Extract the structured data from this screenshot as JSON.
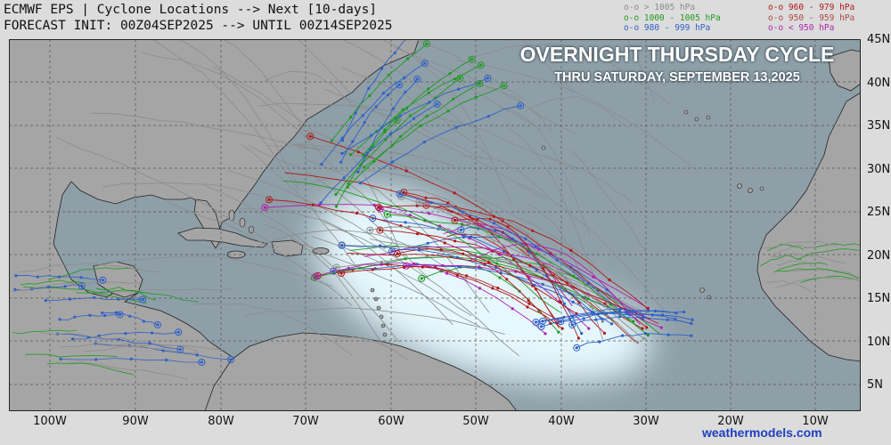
{
  "header": {
    "line1": "ECMWF EPS | Cyclone Locations --> Next [10-days]",
    "line2": "FORECAST INIT: 00Z04SEP2025 --> UNTIL 00Z14SEP2025"
  },
  "legend": {
    "left": [
      {
        "text": "o-o > 1005 hPa",
        "color": "#8c8c8c"
      },
      {
        "text": "o-o 1000 - 1005 hPa",
        "color": "#1f9a1f"
      },
      {
        "text": "o-o 980 - 999 hPa",
        "color": "#2f5fc8"
      }
    ],
    "right": [
      {
        "text": "o-o 960 - 979 hPa",
        "color": "#b01818"
      },
      {
        "text": "o-o 950 - 959 hPa",
        "color": "#b04848"
      },
      {
        "text": "o-o < 950 hPa",
        "color": "#b020b0"
      }
    ]
  },
  "overlay": {
    "title": "OVERNIGHT THURSDAY CYCLE",
    "subtitle": "THRU SATURDAY, SEPTEMBER 13,2025"
  },
  "axes": {
    "lat_labels": [
      "45N",
      "40N",
      "35N",
      "30N",
      "25N",
      "20N",
      "15N",
      "10N",
      "5N"
    ],
    "lon_labels": [
      "100W",
      "90W",
      "80W",
      "70W",
      "60W",
      "50W",
      "40W",
      "30W",
      "20W",
      "10W"
    ]
  },
  "credit": "weathermodels.com",
  "colors": {
    "ocean": "#8e9fa8",
    "land": "#a5a5a5",
    "glow": "#e9fbff",
    "track_gray": "#8c8c8c",
    "track_green": "#1f9a1f",
    "track_blue": "#2f5fc8",
    "track_red": "#b01818",
    "track_magenta": "#b020b0"
  },
  "icons": [
    "map-grid",
    "cyclone-track-markers"
  ]
}
